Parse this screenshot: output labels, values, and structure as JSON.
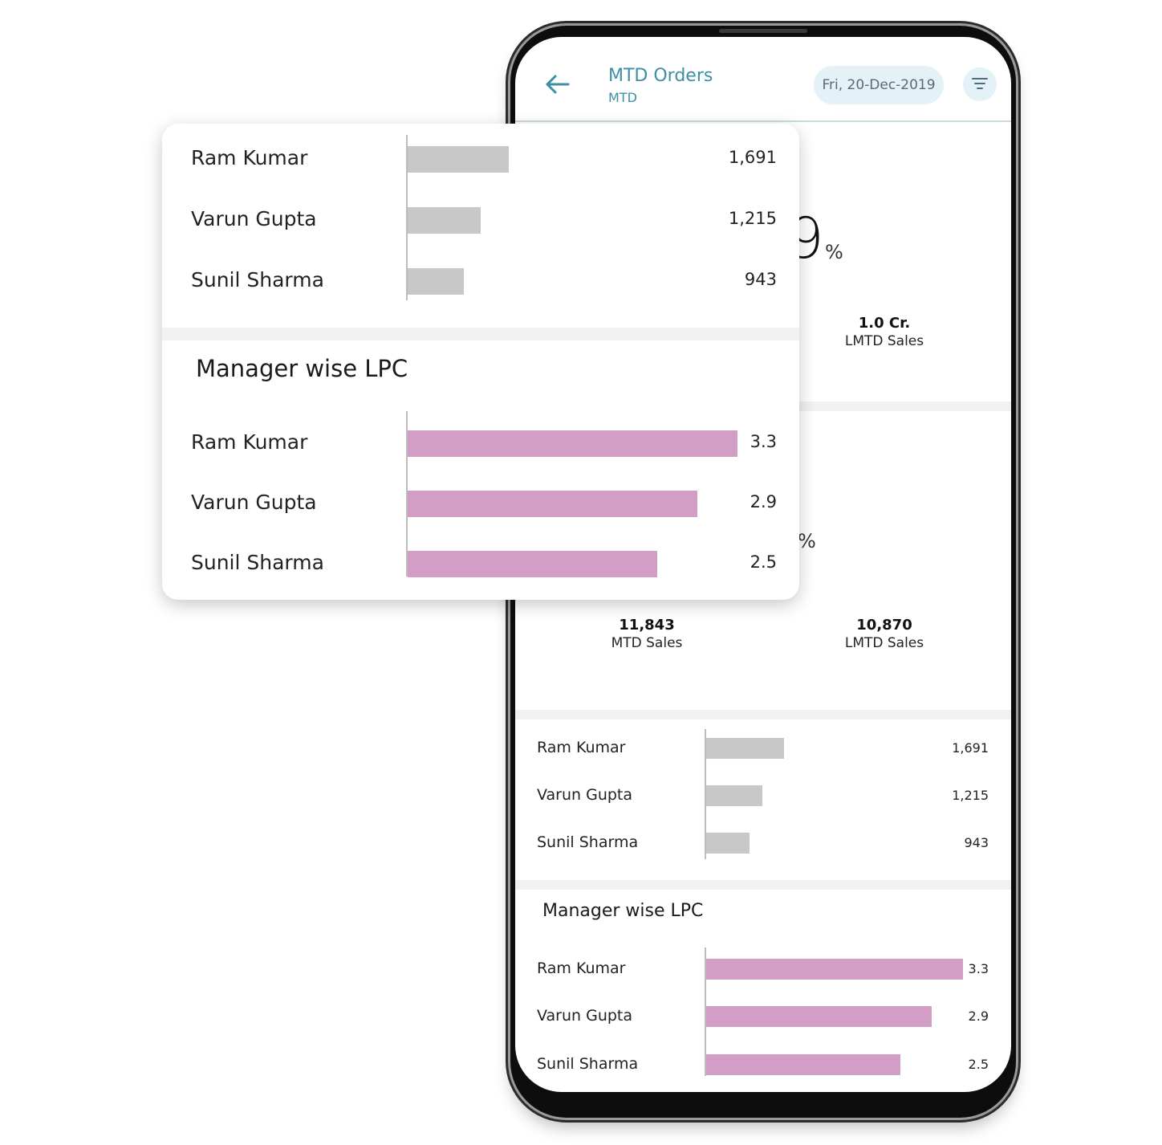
{
  "appbar": {
    "title": "MTD Orders",
    "subtitle": "MTD",
    "date": "Fri, 20-Dec-2019"
  },
  "summary_top": {
    "big_digit": "9",
    "percent_sign": "%",
    "lmtd_value": "1.0 Cr.",
    "lmtd_label": "LMTD Sales"
  },
  "summary_mid": {
    "percent_sign": "%",
    "mtd_value": "11,843",
    "mtd_label": "MTD Sales",
    "lmtd_value": "10,870",
    "lmtd_label": "LMTD Sales"
  },
  "manager_sales": {
    "rows": [
      {
        "name": "Ram Kumar",
        "label": "1,691",
        "value": 1691
      },
      {
        "name": "Varun Gupta",
        "label": "1,215",
        "value": 1215
      },
      {
        "name": "Sunil Sharma",
        "label": "943",
        "value": 943
      }
    ],
    "bar_color": "#c8c8c8"
  },
  "manager_lpc": {
    "title": "Manager wise LPC",
    "rows": [
      {
        "name": "Ram Kumar",
        "label": "3.3",
        "value": 3.3
      },
      {
        "name": "Varun Gupta",
        "label": "2.9",
        "value": 2.9
      },
      {
        "name": "Sunil Sharma",
        "label": "2.5",
        "value": 2.5
      }
    ],
    "bar_color": "#d39ec6"
  },
  "colors": {
    "accent": "#3e8fa6",
    "chip_bg": "#e4f1f6"
  }
}
